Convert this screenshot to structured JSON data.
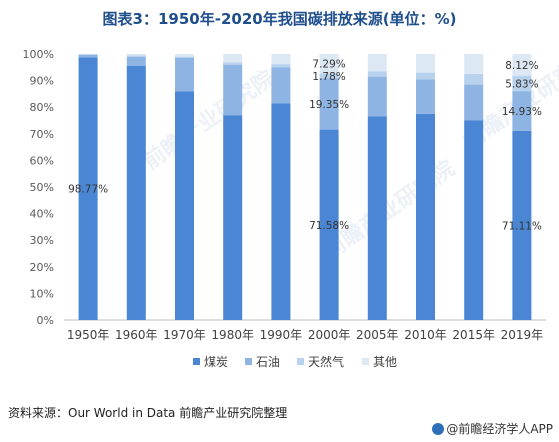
{
  "title": "图表3：1950年-2020年我国碳排放来源(单位：%)",
  "source": "资料来源：Our World in Data 前瞻产业研究院整理",
  "logo": "@前瞻经济学人APP",
  "colors": {
    "coal": "#4a86d4",
    "oil": "#8db4e3",
    "gas": "#b8d2ee",
    "other": "#dde8f5"
  },
  "chart_data": {
    "type": "bar",
    "stacked": true,
    "categories": [
      "1950年",
      "1960年",
      "1970年",
      "1980年",
      "1990年",
      "2000年",
      "2005年",
      "2010年",
      "2015年",
      "2019年"
    ],
    "series": [
      {
        "name": "煤炭",
        "values": [
          98.77,
          95.5,
          86.0,
          77.0,
          81.5,
          71.58,
          76.5,
          77.5,
          75.0,
          71.11
        ]
      },
      {
        "name": "石油",
        "values": [
          1.0,
          3.5,
          12.5,
          19.0,
          13.5,
          19.35,
          15.0,
          13.0,
          13.5,
          14.93
        ]
      },
      {
        "name": "天然气",
        "values": [
          0.13,
          0.5,
          0.5,
          0.8,
          1.2,
          1.78,
          2.0,
          2.5,
          4.0,
          5.83
        ]
      },
      {
        "name": "其他",
        "values": [
          0.1,
          0.5,
          1.0,
          3.2,
          3.8,
          7.29,
          6.5,
          7.0,
          7.5,
          8.12
        ]
      }
    ],
    "data_labels": [
      {
        "category": "1950年",
        "series": "煤炭",
        "text": "98.77%"
      },
      {
        "category": "2000年",
        "series": "煤炭",
        "text": "71.58%"
      },
      {
        "category": "2000年",
        "series": "石油",
        "text": "19.35%"
      },
      {
        "category": "2000年",
        "series": "天然气",
        "text": "1.78%"
      },
      {
        "category": "2000年",
        "series": "其他",
        "text": "7.29%"
      },
      {
        "category": "2019年",
        "series": "煤炭",
        "text": "71.11%"
      },
      {
        "category": "2019年",
        "series": "石油",
        "text": "14.93%"
      },
      {
        "category": "2019年",
        "series": "天然气",
        "text": "5.83%"
      },
      {
        "category": "2019年",
        "series": "其他",
        "text": "8.12%"
      }
    ],
    "ylim": [
      0,
      100
    ],
    "yticks": [
      "0%",
      "10%",
      "20%",
      "30%",
      "40%",
      "50%",
      "60%",
      "70%",
      "80%",
      "90%",
      "100%"
    ],
    "legend_position": "bottom",
    "grid": false
  }
}
